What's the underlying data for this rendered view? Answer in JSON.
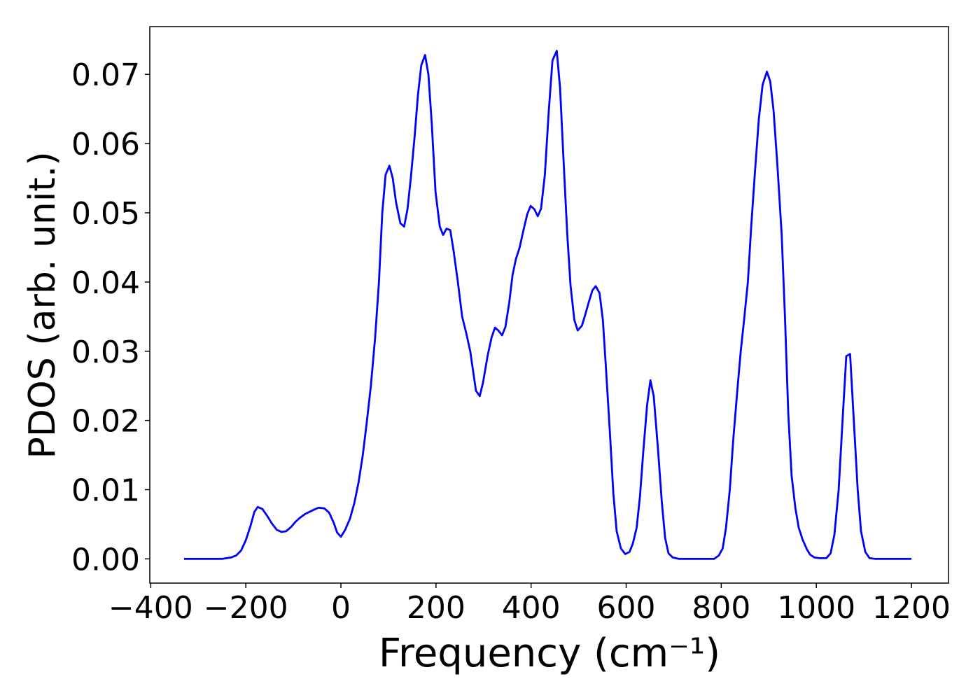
{
  "chart_data": {
    "type": "line",
    "xlabel": "Frequency (cm⁻¹)",
    "ylabel": "PDOS (arb. unit.)",
    "xlim": [
      -402,
      1278
    ],
    "ylim": [
      -0.0035,
      0.0769
    ],
    "xticks": [
      {
        "value": -400,
        "label": "−400"
      },
      {
        "value": -200,
        "label": "−200"
      },
      0,
      200,
      400,
      600,
      800,
      1000,
      1200
    ],
    "yticks": [
      {
        "value": 0,
        "label": "0.00"
      },
      0.01,
      0.02,
      0.03,
      0.04,
      0.05,
      0.06,
      0.07
    ],
    "x": [
      -330,
      -250,
      -231,
      -220,
      -210,
      -200,
      -190,
      -182,
      -175,
      -165,
      -155,
      -145,
      -135,
      -125,
      -115,
      -105,
      -95,
      -85,
      -75,
      -60,
      -47,
      -35,
      -25,
      -15,
      -8,
      0,
      9,
      19,
      28,
      37,
      46,
      54,
      63,
      72,
      80,
      87,
      94,
      102,
      109,
      116,
      125,
      133,
      140,
      147,
      155,
      162,
      169,
      177,
      184,
      191,
      199,
      208,
      215,
      222,
      230,
      237,
      246,
      255,
      264,
      272,
      284,
      292,
      299,
      309,
      317,
      324,
      331,
      339,
      346,
      354,
      361,
      368,
      376,
      384,
      392,
      399,
      407,
      414,
      421,
      429,
      437,
      445,
      454,
      461,
      468,
      476,
      483,
      491,
      498,
      507,
      514,
      521,
      529,
      536,
      544,
      551,
      558,
      566,
      573,
      580,
      589,
      598,
      607,
      614,
      622,
      629,
      636,
      644,
      651,
      658,
      667,
      675,
      682,
      689,
      698,
      711,
      785,
      795,
      803,
      810,
      818,
      825,
      834,
      841,
      848,
      856,
      863,
      871,
      879,
      887,
      896,
      903,
      910,
      918,
      927,
      934,
      941,
      948,
      956,
      963,
      971,
      980,
      987,
      996,
      1006,
      1021,
      1030,
      1038,
      1047,
      1056,
      1063,
      1071,
      1078,
      1087,
      1094,
      1103,
      1112,
      1124,
      1200
    ],
    "series": [
      {
        "color": "#0000ff",
        "values": [
          0,
          0,
          0.0002,
          0.0005,
          0.0012,
          0.0027,
          0.0048,
          0.0068,
          0.0075,
          0.0072,
          0.0062,
          0.0051,
          0.0042,
          0.0039,
          0.004,
          0.0046,
          0.0054,
          0.006,
          0.0065,
          0.007,
          0.0074,
          0.0073,
          0.0067,
          0.0052,
          0.0038,
          0.0032,
          0.0042,
          0.0058,
          0.008,
          0.011,
          0.015,
          0.0195,
          0.025,
          0.032,
          0.04,
          0.05,
          0.0555,
          0.0568,
          0.055,
          0.0515,
          0.0485,
          0.048,
          0.0505,
          0.055,
          0.061,
          0.067,
          0.0713,
          0.0728,
          0.07,
          0.063,
          0.053,
          0.048,
          0.0468,
          0.0477,
          0.0475,
          0.0445,
          0.04,
          0.035,
          0.0325,
          0.03,
          0.0243,
          0.0235,
          0.0255,
          0.0295,
          0.032,
          0.0334,
          0.033,
          0.0323,
          0.0335,
          0.037,
          0.041,
          0.0433,
          0.045,
          0.0475,
          0.0498,
          0.051,
          0.0505,
          0.0495,
          0.0506,
          0.0555,
          0.0645,
          0.072,
          0.0734,
          0.068,
          0.058,
          0.047,
          0.0395,
          0.0345,
          0.033,
          0.0337,
          0.0353,
          0.037,
          0.0388,
          0.0394,
          0.0384,
          0.0345,
          0.027,
          0.018,
          0.0095,
          0.004,
          0.0015,
          0.0007,
          0.001,
          0.0022,
          0.0045,
          0.009,
          0.0155,
          0.0222,
          0.0258,
          0.0235,
          0.0158,
          0.0082,
          0.003,
          0.0008,
          0.0002,
          0,
          0,
          0.0005,
          0.0015,
          0.0045,
          0.01,
          0.017,
          0.0245,
          0.03,
          0.0345,
          0.04,
          0.048,
          0.056,
          0.0635,
          0.0685,
          0.0704,
          0.069,
          0.0648,
          0.057,
          0.047,
          0.035,
          0.021,
          0.012,
          0.0073,
          0.0045,
          0.0028,
          0.0014,
          0.0006,
          0.0002,
          0.0001,
          0.0001,
          0.0008,
          0.0035,
          0.01,
          0.021,
          0.0293,
          0.0296,
          0.021,
          0.01,
          0.004,
          0.001,
          0.0001,
          0,
          0
        ]
      }
    ]
  }
}
